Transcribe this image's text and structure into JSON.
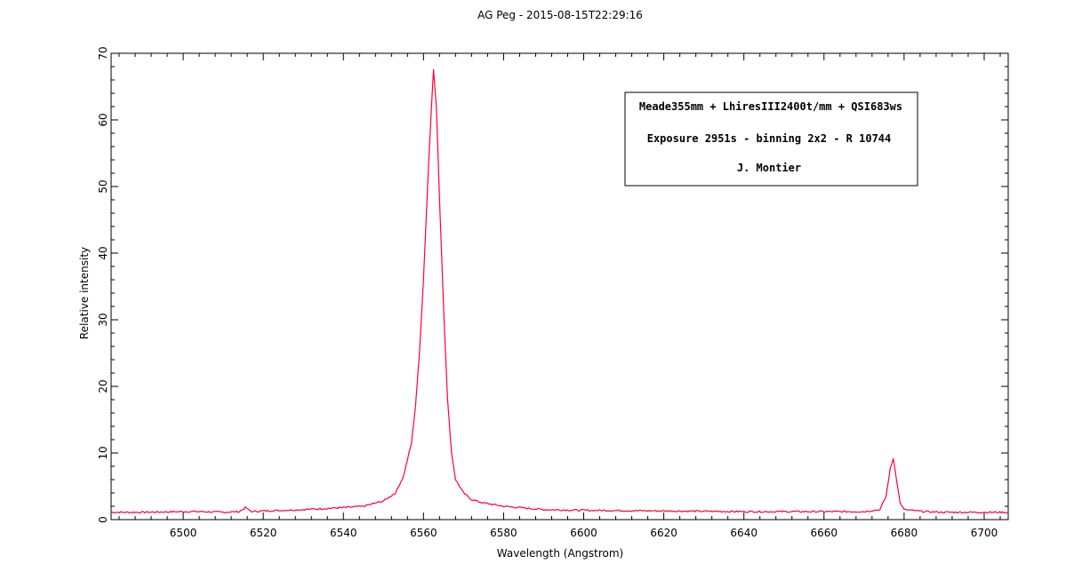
{
  "chart_data": {
    "type": "line",
    "title": "AG Peg - 2015-08-15T22:29:16",
    "xlabel": "Wavelength (Angstrom)",
    "ylabel": "Relative intensity",
    "xlim": [
      6482,
      6706
    ],
    "ylim": [
      0,
      70
    ],
    "xticks": [
      6500,
      6520,
      6540,
      6560,
      6580,
      6600,
      6620,
      6640,
      6660,
      6680,
      6700
    ],
    "yticks": [
      0,
      10,
      20,
      30,
      40,
      50,
      60,
      70
    ],
    "grid": false,
    "annotation_lines": [
      "Meade355mm + LhiresIII2400t/mm + QSI683ws",
      "Exposure 2951s - binning 2x2 - R 10744",
      "J. Montier"
    ],
    "annotation_position": "top-right",
    "series": [
      {
        "color": "#ff0033",
        "x": [
          6482,
          6490,
          6500,
          6505,
          6510,
          6514,
          6515.5,
          6517,
          6520,
          6530,
          6540,
          6545,
          6550,
          6553,
          6555,
          6557,
          6558,
          6559,
          6560,
          6561,
          6561.8,
          6562.5,
          6563.2,
          6564,
          6565,
          6566,
          6567,
          6568,
          6570,
          6572,
          6575,
          6580,
          6590,
          6600,
          6620,
          6640,
          6660,
          6670,
          6674,
          6675.5,
          6676.5,
          6677.3,
          6678,
          6679,
          6680,
          6685,
          6690,
          6700,
          6706
        ],
        "y": [
          1.1,
          1.1,
          1.2,
          1.2,
          1.1,
          1.2,
          1.8,
          1.2,
          1.3,
          1.5,
          1.8,
          2.0,
          2.8,
          4.0,
          6.5,
          11.5,
          17.0,
          25.0,
          36.0,
          50.0,
          60.0,
          67.5,
          62.0,
          48.0,
          32.0,
          18.0,
          10.0,
          6.0,
          4.0,
          3.0,
          2.5,
          2.0,
          1.5,
          1.4,
          1.3,
          1.2,
          1.2,
          1.2,
          1.5,
          3.5,
          7.5,
          9.2,
          6.5,
          2.5,
          1.5,
          1.2,
          1.1,
          1.1,
          1.1
        ]
      }
    ]
  }
}
